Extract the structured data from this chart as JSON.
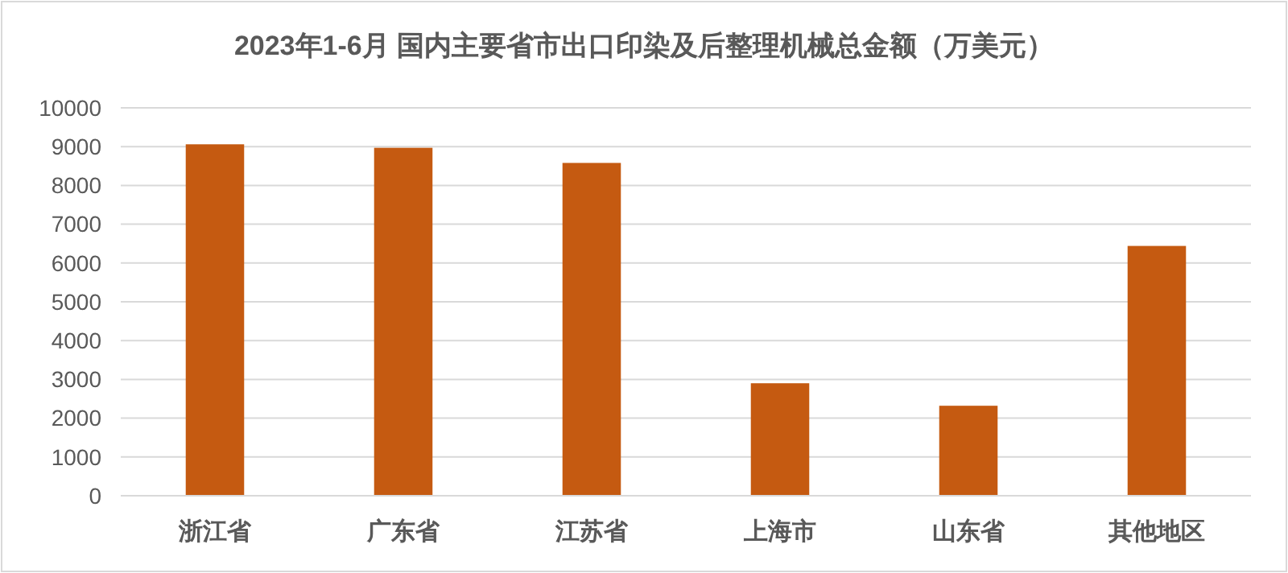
{
  "chart_data": {
    "type": "bar",
    "title": "2023年1-6月  国内主要省市出口印染及后整理机械总金额（万美元）",
    "categories": [
      "浙江省",
      "广东省",
      "江苏省",
      "上海市",
      "山东省",
      "其他地区"
    ],
    "values": [
      9060,
      8970,
      8580,
      2900,
      2320,
      6440
    ],
    "color": "#c55a11",
    "ylim": [
      0,
      10000
    ],
    "yticks": [
      0,
      1000,
      2000,
      3000,
      4000,
      5000,
      6000,
      7000,
      8000,
      9000,
      10000
    ],
    "grid": "y"
  }
}
